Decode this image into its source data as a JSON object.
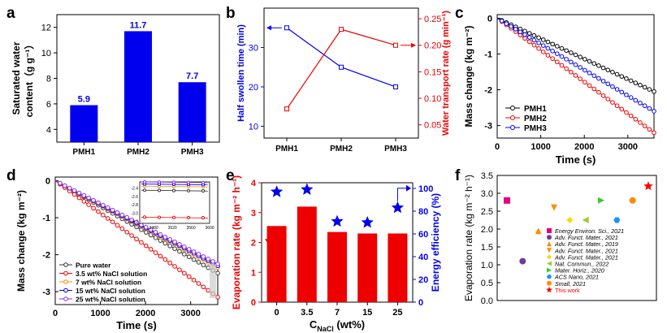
{
  "colors": {
    "blue": "#0000ee",
    "red": "#ee0000",
    "black": "#000000",
    "grey": "#555555",
    "violet": "#8a2be2",
    "orange": "#ff8c00",
    "pink": "#e6007e",
    "green": "#32cd32",
    "yellow": "#ffd700",
    "purpleDot": "#6a3d9a",
    "lime": "#9acd32",
    "cyan": "#1e90ff",
    "star": "#ff0000"
  },
  "chart_data": [
    {
      "panel": "a",
      "type": "bar",
      "categories": [
        "PMH1",
        "PMH2",
        "PMH3"
      ],
      "values": [
        5.9,
        11.7,
        7.7
      ],
      "value_labels": [
        "5.9",
        "11.7",
        "7.7"
      ],
      "ylabel": "Saturated water content（g g⁻¹）",
      "ylabel_lines": [
        "Saturated water",
        "content（g g⁻¹）"
      ],
      "ylim": [
        3,
        13
      ],
      "yticks": [
        4,
        6,
        8,
        10,
        12
      ]
    },
    {
      "panel": "b",
      "type": "line",
      "categories": [
        "PMH1",
        "PMH2",
        "PMH3"
      ],
      "series": [
        {
          "name": "Half swollen time",
          "axis": "left",
          "values": [
            35,
            25,
            20
          ]
        },
        {
          "name": "Water transport rate",
          "axis": "right",
          "values": [
            0.08,
            0.23,
            0.2
          ]
        }
      ],
      "ylabel_left": "Half swollen time (min)",
      "ylabel_right": "Water transport rate (g min⁻¹)",
      "ylim_left": [
        7,
        40
      ],
      "yticks_left": [
        10,
        20,
        30
      ],
      "ylim_right": [
        0.025,
        0.27
      ],
      "yticks_right": [
        0.05,
        0.1,
        0.15,
        0.2,
        0.25
      ],
      "ytick_labels_right": [
        "0.05",
        "0.10",
        "0.15",
        "0.20",
        "0.25"
      ]
    },
    {
      "panel": "c",
      "type": "line",
      "xlabel": "Time (s)",
      "ylabel": "Mass change (kg m⁻²)",
      "xlim": [
        0,
        3600
      ],
      "xticks": [
        0,
        1000,
        2000,
        3000
      ],
      "ylim": [
        -3.35,
        0.1
      ],
      "yticks": [
        0,
        -1,
        -2,
        -3
      ],
      "series": [
        {
          "name": "PMH1",
          "slope": -2.05
        },
        {
          "name": "PMH2",
          "slope": -3.2
        },
        {
          "name": "PMH3",
          "slope": -2.6
        }
      ]
    },
    {
      "panel": "d",
      "type": "line",
      "xlabel": "Time (s)",
      "ylabel": "Mass change (kg m⁻²)",
      "xlim": [
        0,
        3600
      ],
      "xticks": [
        0,
        1000,
        2000,
        3000
      ],
      "ylim": [
        -3.35,
        0.1
      ],
      "yticks": [
        0,
        -1,
        -2,
        -3
      ],
      "series": [
        {
          "name": "Pure water",
          "slope": -2.5
        },
        {
          "name": "3.5 wt% NaCl solution",
          "slope": -3.15
        },
        {
          "name": "7 wt% NaCl solution",
          "slope": -2.35
        },
        {
          "name": "15 wt% NaCl solution",
          "slope": -2.3
        },
        {
          "name": "25 wt% NaCl solution",
          "slope": -2.25
        }
      ],
      "inset": {
        "xlim": [
          3450,
          3600
        ],
        "xticks": [
          3480,
          3520,
          3560,
          3600
        ],
        "ylim": [
          -3.25,
          -2.25
        ],
        "yticks": [
          -2.4,
          -2.6,
          -2.8,
          -3.0,
          -3.2
        ],
        "ytick_labels": [
          "-2.4",
          "-2.6",
          "-2.8",
          "-3.0",
          "-3.2"
        ],
        "values": [
          -2.45,
          -3.1,
          -2.35,
          -2.3,
          -2.25
        ]
      }
    },
    {
      "panel": "e",
      "type": "bar",
      "categories": [
        "0",
        "3.5",
        "7",
        "15",
        "25"
      ],
      "values": [
        2.55,
        3.2,
        2.35,
        2.3,
        2.3
      ],
      "efficiency": [
        97,
        99,
        71,
        70,
        83
      ],
      "xlabel": "C",
      "xlabel_sub": "NaCl",
      "xlabel_unit": " (wt%)",
      "ylabel_left": "Evaporation rate (kg m⁻² h⁻¹)",
      "ylabel_right": "Energy efficiency (%)",
      "ylim_left": [
        0,
        4
      ],
      "yticks_left": [
        0,
        1,
        2,
        3,
        4
      ],
      "ylim_right": [
        0,
        105
      ],
      "yticks_right": [
        0,
        20,
        40,
        60,
        80,
        100
      ]
    },
    {
      "panel": "f",
      "type": "scatter",
      "ylabel": "Evaporation rate (kg m⁻² h⁻¹)",
      "ylim": [
        0,
        3.5
      ],
      "yticks": [
        0,
        0.5,
        1,
        1.5,
        2,
        2.5,
        3,
        3.5
      ],
      "ytick_labels": [
        "0.0",
        "0.5",
        "1.0",
        "1.5",
        "2.0",
        "2.5",
        "3.0",
        "3.5"
      ],
      "points": [
        {
          "label": "Energy Environ. Sci., 2021",
          "value": 2.8,
          "marker": "square",
          "color": "pink"
        },
        {
          "label": "Adv. Funct. Mater., 2021",
          "value": 1.1,
          "marker": "circle",
          "color": "purpleDot"
        },
        {
          "label": "Adv. Funct. Mater., 2019",
          "value": 1.95,
          "marker": "triangle-up",
          "color": "orange"
        },
        {
          "label": "Adv. Funct. Mater., 2021",
          "value": 2.6,
          "marker": "triangle-down",
          "color": "orange"
        },
        {
          "label": "Adv. Funct. Mater., 2021",
          "value": 2.25,
          "marker": "diamond",
          "color": "yellow"
        },
        {
          "label": "Nat. Commun., 2022",
          "value": 2.25,
          "marker": "triangle-left",
          "color": "lime"
        },
        {
          "label": "Mater. Horiz., 2020",
          "value": 2.8,
          "marker": "triangle-right",
          "color": "green"
        },
        {
          "label": "ACS Nano, 2021",
          "value": 2.25,
          "marker": "hexagon",
          "color": "cyan"
        },
        {
          "label": "Small, 2021",
          "value": 2.8,
          "marker": "circle",
          "color": "orange"
        },
        {
          "label": "This work",
          "value": 3.2,
          "marker": "star",
          "color": "star"
        }
      ]
    }
  ],
  "legend_c": [
    "PMH1",
    "PMH2",
    "PMH3"
  ],
  "legend_d": [
    "Pure water",
    "3.5 wt% NaCl solution",
    "7 wt% NaCl solution",
    "15 wt% NaCl solution",
    "25 wt% NaCl solution"
  ],
  "panel_labels": [
    "a",
    "b",
    "c",
    "d",
    "e",
    "f"
  ]
}
